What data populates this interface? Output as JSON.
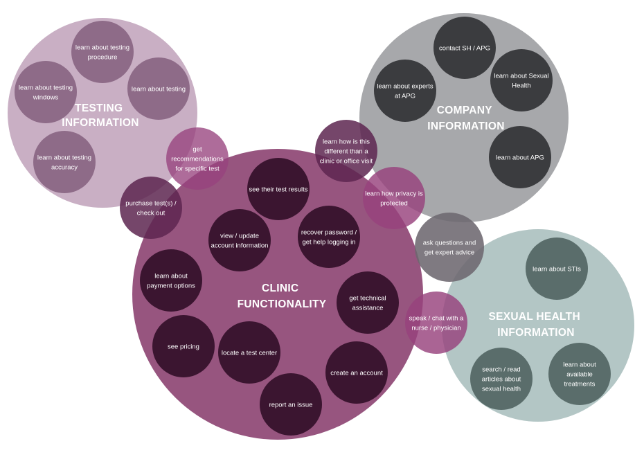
{
  "groups": {
    "testing": {
      "title_lines": [
        "TESTING",
        "INFORMATION"
      ],
      "nodes": [
        {
          "id": "testing-procedure",
          "lines": [
            "learn about testing",
            "procedure"
          ]
        },
        {
          "id": "testing-windows",
          "lines": [
            "learn about testing",
            "windows"
          ]
        },
        {
          "id": "learn-testing",
          "lines": [
            "learn about testing"
          ]
        },
        {
          "id": "testing-accuracy",
          "lines": [
            "learn about testing",
            "accuracy"
          ]
        }
      ]
    },
    "company": {
      "title_lines": [
        "COMPANY",
        "INFORMATION"
      ],
      "nodes": [
        {
          "id": "contact",
          "lines": [
            "contact SH / APG"
          ]
        },
        {
          "id": "experts",
          "lines": [
            "learn about experts",
            "at APG"
          ]
        },
        {
          "id": "sexual-health",
          "lines": [
            "learn about Sexual",
            "Health"
          ]
        },
        {
          "id": "about-apg",
          "lines": [
            "learn about APG"
          ]
        }
      ]
    },
    "clinic": {
      "title_lines": [
        "CLINIC",
        "FUNCTIONALITY"
      ],
      "nodes": [
        {
          "id": "test-results",
          "lines": [
            "see their test results"
          ]
        },
        {
          "id": "update-account",
          "lines": [
            "view / update",
            "account information"
          ]
        },
        {
          "id": "recover-password",
          "lines": [
            "recover password /",
            "get help logging in"
          ]
        },
        {
          "id": "payment-options",
          "lines": [
            "learn about",
            "payment options"
          ]
        },
        {
          "id": "technical-assistance",
          "lines": [
            "get technical",
            "assistance"
          ]
        },
        {
          "id": "pricing",
          "lines": [
            "see pricing"
          ]
        },
        {
          "id": "test-center",
          "lines": [
            "locate a test center"
          ]
        },
        {
          "id": "create-account",
          "lines": [
            "create an account"
          ]
        },
        {
          "id": "report-issue",
          "lines": [
            "report an issue"
          ]
        }
      ]
    },
    "sexual": {
      "title_lines": [
        "SEXUAL HEALTH",
        "INFORMATION"
      ],
      "nodes": [
        {
          "id": "stis",
          "lines": [
            "learn about STIs"
          ]
        },
        {
          "id": "articles",
          "lines": [
            "search / read",
            "articles about",
            "sexual health"
          ]
        },
        {
          "id": "treatments",
          "lines": [
            "learn about",
            "available",
            "treatments"
          ]
        }
      ]
    }
  },
  "overlaps": [
    {
      "id": "recommendations",
      "lines": [
        "get",
        "recommendations",
        "for specific test"
      ]
    },
    {
      "id": "purchase",
      "lines": [
        "purchase test(s) /",
        "check out"
      ]
    },
    {
      "id": "different",
      "lines": [
        "learn how is this",
        "different than a",
        "clinic or office visit"
      ]
    },
    {
      "id": "privacy",
      "lines": [
        "learn how privacy is",
        "protected"
      ]
    },
    {
      "id": "questions",
      "lines": [
        "ask questions and",
        "get expert advice"
      ]
    },
    {
      "id": "nurse",
      "lines": [
        "speak / chat with a",
        "nurse / physician"
      ]
    }
  ],
  "colors": {
    "testing_big": "#c9afc4",
    "testing_node": "#8e6b88",
    "company_big": "#a7a8ab",
    "company_node": "#3b3c3f",
    "clinic_big": "#97557f",
    "clinic_node": "#3b1530",
    "sexual_big": "#b3c6c5",
    "sexual_node": "#5a6d6b",
    "overlap_magenta": "#97427d",
    "overlap_dark": "#5d2650",
    "overlap_gray": "#6d6870"
  }
}
